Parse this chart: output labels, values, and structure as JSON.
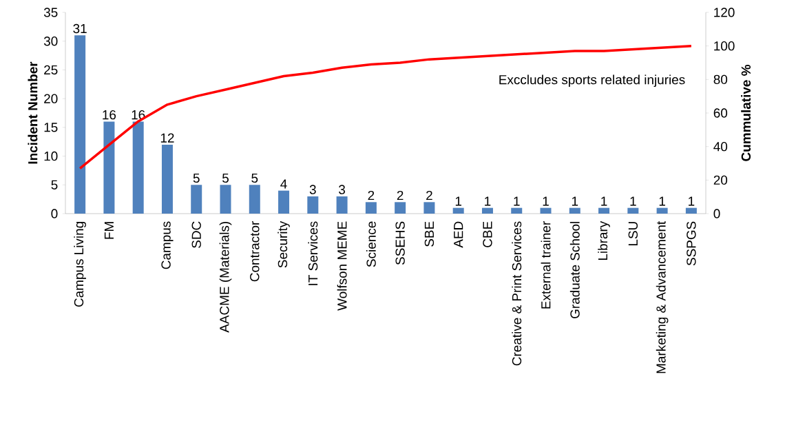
{
  "chart_data": {
    "type": "bar",
    "categories": [
      "Campus Living",
      "FM",
      null,
      "Campus",
      "SDC",
      "AACME (Materials)",
      "Contractor",
      "Security",
      "IT Services",
      "Wolfson MEME",
      "Science",
      "SSEHS",
      "SBE",
      "AED",
      "CBE",
      "Creative & Print Services",
      "External trainer",
      "Graduate School",
      "Library",
      "LSU",
      "Marketing & Advancement",
      "SSPGS"
    ],
    "series": [
      {
        "color": "#4f81bd",
        "values": [
          31,
          16,
          16,
          12,
          5,
          5,
          5,
          4,
          3,
          3,
          2,
          2,
          2,
          1,
          1,
          1,
          1,
          1,
          1,
          1,
          1,
          1
        ],
        "value_labels": [
          "31",
          "16",
          "16",
          "12",
          "5",
          "5",
          "5",
          "4",
          "3",
          "3",
          "2",
          "2",
          "2",
          "1",
          "1",
          "1",
          "1",
          "1",
          "1",
          "1",
          "1",
          "1"
        ]
      },
      {
        "type": "line",
        "axis": "y2",
        "color": "#ff0000",
        "values": [
          27,
          41,
          55,
          65,
          70,
          74,
          78,
          82,
          84,
          87,
          89,
          90,
          92,
          93,
          94,
          95,
          96,
          97,
          97,
          98,
          99,
          100
        ]
      }
    ],
    "ylabel": "Incident Number",
    "y2label": "Cummulative %",
    "ylim": [
      0,
      35
    ],
    "yticks": [
      0,
      5,
      10,
      15,
      20,
      25,
      30,
      35
    ],
    "y2lim": [
      0,
      120
    ],
    "y2ticks": [
      0,
      20,
      40,
      60,
      80,
      100,
      120
    ],
    "grid": false,
    "marker": "none",
    "annotations": [
      "Exccludes sports related injuries"
    ]
  }
}
